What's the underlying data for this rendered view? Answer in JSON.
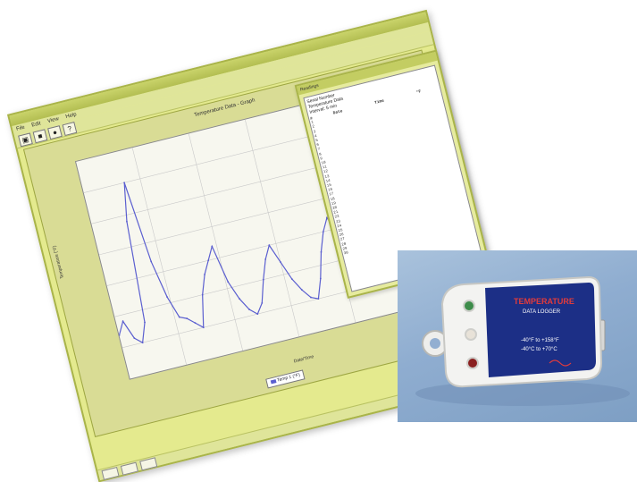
{
  "window": {
    "title": "",
    "menus": [
      "File",
      "Edit",
      "View",
      "Help"
    ],
    "toolbar_icons": [
      "open-icon",
      "save-icon",
      "info-icon",
      "help-icon"
    ]
  },
  "graph": {
    "title": "Temperature Data - Graph",
    "xlabel": "Date/Time",
    "ylabel": "Temperature (°F)",
    "legend": "Temp 1 (°F)",
    "colors": {
      "series": "#5b5fd0",
      "grid": "#c9c9c9",
      "panel": "#d9dc95"
    }
  },
  "chart_data": {
    "type": "line",
    "title": "Temperature Data - Graph",
    "xlabel": "Date/Time",
    "ylabel": "Temperature (°F)",
    "x": [
      0,
      2,
      4,
      6,
      8,
      10,
      12,
      14,
      16,
      18,
      20,
      22,
      24,
      26,
      28,
      30,
      32,
      34,
      36,
      38,
      40,
      42,
      44,
      46,
      48,
      50,
      52,
      54,
      56,
      58,
      60,
      62,
      64,
      66,
      68,
      70,
      72,
      74,
      76,
      78,
      80,
      82,
      84,
      86,
      88,
      90,
      92,
      94,
      96,
      98,
      100
    ],
    "series": [
      {
        "name": "Temp 1 (°F)",
        "values": [
          54,
          58,
          52,
          50,
          56,
          88,
          100,
          74,
          62,
          55,
          54,
          52,
          50,
          60,
          66,
          70,
          74,
          62,
          56,
          52,
          50,
          53,
          60,
          66,
          70,
          64,
          58,
          54,
          51,
          50,
          56,
          64,
          70,
          74,
          68,
          60,
          55,
          52,
          56,
          62,
          64,
          60,
          56,
          52,
          54,
          58,
          56,
          52,
          50,
          52,
          54
        ]
      }
    ],
    "ylim": [
      40,
      110
    ],
    "grid": true,
    "legend_position": "bottom"
  },
  "readings": {
    "title": "Readings",
    "header_lines": [
      "Serial Number",
      "Temperature Data",
      "Interval: 5 min"
    ],
    "columns": [
      "#",
      "Date",
      "Time",
      "°F"
    ],
    "rows": [
      [
        "1",
        "",
        "",
        ""
      ],
      [
        "2",
        "",
        "",
        ""
      ],
      [
        "3",
        "",
        "",
        ""
      ],
      [
        "4",
        "",
        "",
        ""
      ],
      [
        "5",
        "",
        "",
        ""
      ],
      [
        "6",
        "",
        "",
        ""
      ],
      [
        "7",
        "",
        "",
        ""
      ],
      [
        "8",
        "",
        "",
        ""
      ],
      [
        "9",
        "",
        "",
        ""
      ],
      [
        "10",
        "",
        "",
        ""
      ],
      [
        "11",
        "",
        "",
        ""
      ],
      [
        "12",
        "",
        "",
        ""
      ],
      [
        "13",
        "",
        "",
        ""
      ],
      [
        "14",
        "",
        "",
        ""
      ],
      [
        "15",
        "",
        "",
        ""
      ],
      [
        "16",
        "",
        "",
        ""
      ],
      [
        "17",
        "",
        "",
        ""
      ],
      [
        "18",
        "",
        "",
        ""
      ],
      [
        "19",
        "",
        "",
        ""
      ],
      [
        "20",
        "",
        "",
        ""
      ],
      [
        "21",
        "",
        "",
        ""
      ],
      [
        "22",
        "",
        "",
        ""
      ],
      [
        "23",
        "",
        "",
        ""
      ],
      [
        "24",
        "",
        "",
        ""
      ],
      [
        "25",
        "",
        "",
        ""
      ],
      [
        "26",
        "",
        "",
        ""
      ],
      [
        "27",
        "",
        "",
        ""
      ],
      [
        "28",
        "",
        "",
        ""
      ],
      [
        "29",
        "",
        "",
        ""
      ],
      [
        "30",
        "",
        "",
        ""
      ]
    ]
  },
  "device": {
    "label_line1": "TEMPERATURE",
    "label_line2": "DATA LOGGER",
    "range_line1": "-40°F to +158°F",
    "range_line2": "-40°C to +70°C",
    "colors": {
      "body": "#f2f2f0",
      "label": "#1c2f86",
      "led_green": "#3d8c4a",
      "led_red": "#8a2020"
    }
  }
}
